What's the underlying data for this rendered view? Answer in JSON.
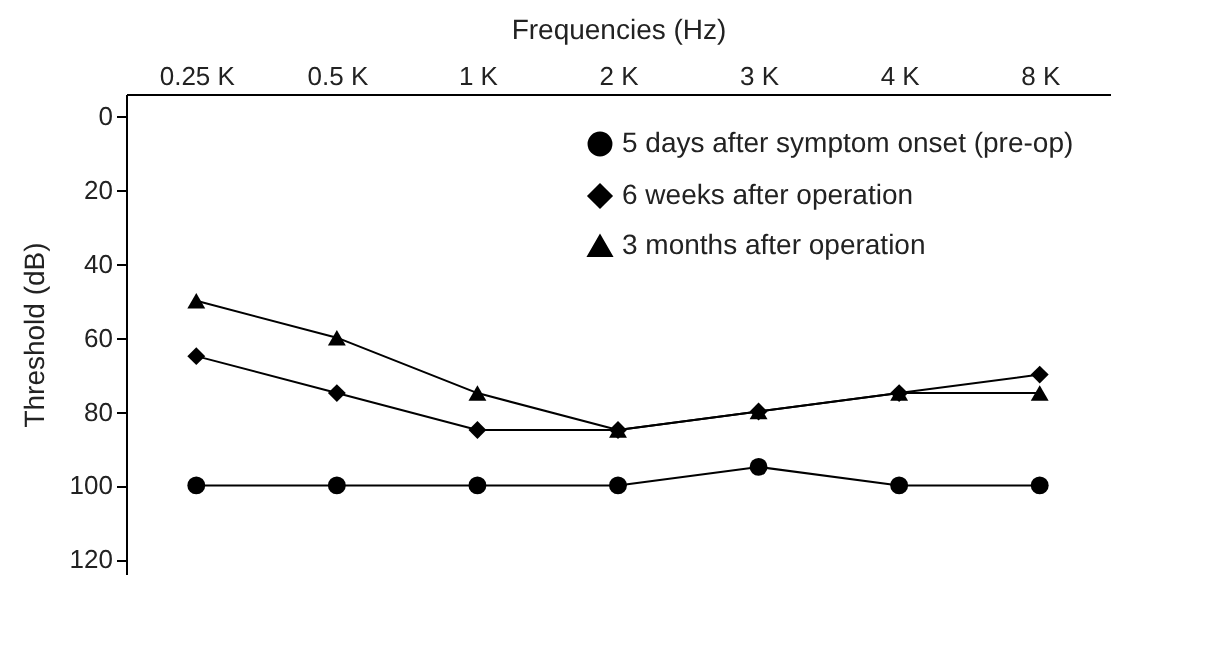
{
  "chart_data": {
    "type": "line",
    "xlabel": "Frequencies (Hz)",
    "ylabel": "Threshold (dB)",
    "categories": [
      "0.25 K",
      "0.5 K",
      "1 K",
      "2 K",
      "3 K",
      "4 K",
      "8 K"
    ],
    "ylim": [
      124,
      -6
    ],
    "yticks": [
      0,
      20,
      40,
      60,
      80,
      100,
      120
    ],
    "legend": "top right",
    "series": [
      {
        "name": "5 days after symptom onset (pre-op)",
        "color": "#000000",
        "marker": "circle",
        "values": [
          100,
          100,
          100,
          100,
          95,
          100,
          100
        ]
      },
      {
        "name": "6 weeks after operation",
        "color": "#000000",
        "marker": "diamond",
        "values": [
          65,
          75,
          85,
          85,
          80,
          75,
          70
        ]
      },
      {
        "name": "3 months after operation",
        "color": "#000000",
        "marker": "triangle",
        "values": [
          50,
          60,
          75,
          85,
          80,
          75,
          75
        ]
      }
    ]
  }
}
